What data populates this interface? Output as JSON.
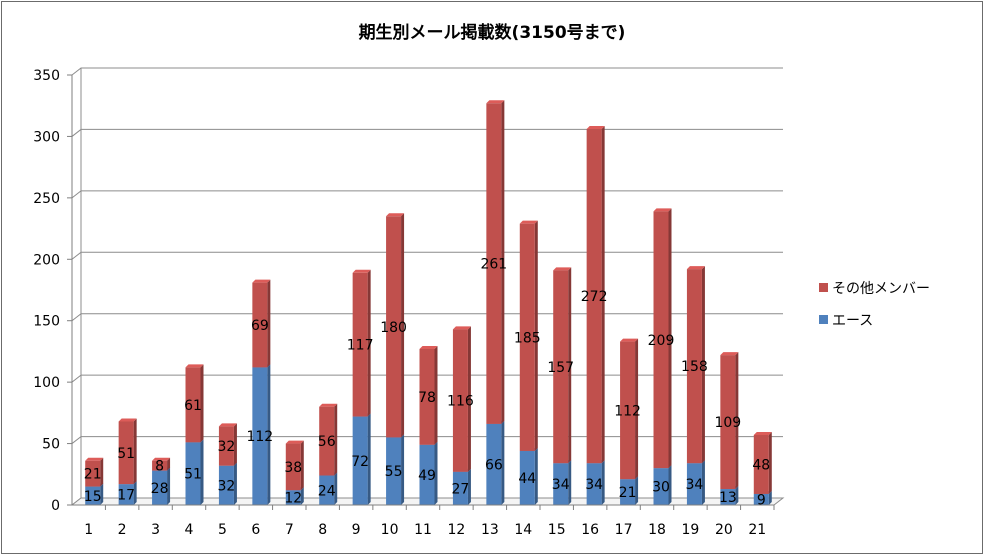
{
  "chart_data": {
    "type": "bar",
    "stacked": true,
    "title": "期生別メール掲載数(3150号まで)",
    "categories": [
      "1",
      "2",
      "3",
      "4",
      "5",
      "6",
      "7",
      "8",
      "9",
      "10",
      "11",
      "12",
      "13",
      "14",
      "15",
      "16",
      "17",
      "18",
      "19",
      "20",
      "21"
    ],
    "series": [
      {
        "name": "エース",
        "color": "#4f81bd",
        "values": [
          15,
          17,
          28,
          51,
          32,
          112,
          12,
          24,
          72,
          55,
          49,
          27,
          66,
          44,
          34,
          34,
          21,
          30,
          34,
          13,
          9
        ]
      },
      {
        "name": "その他メンバー",
        "color": "#c0504d",
        "values": [
          21,
          51,
          8,
          61,
          32,
          69,
          38,
          56,
          117,
          180,
          78,
          116,
          261,
          185,
          157,
          272,
          112,
          209,
          158,
          109,
          48
        ]
      }
    ],
    "ylim": [
      0,
      350
    ],
    "yticks": [
      "0",
      "50",
      "100",
      "150",
      "200",
      "250",
      "300",
      "350"
    ],
    "grid": true,
    "legend_position": "right"
  }
}
